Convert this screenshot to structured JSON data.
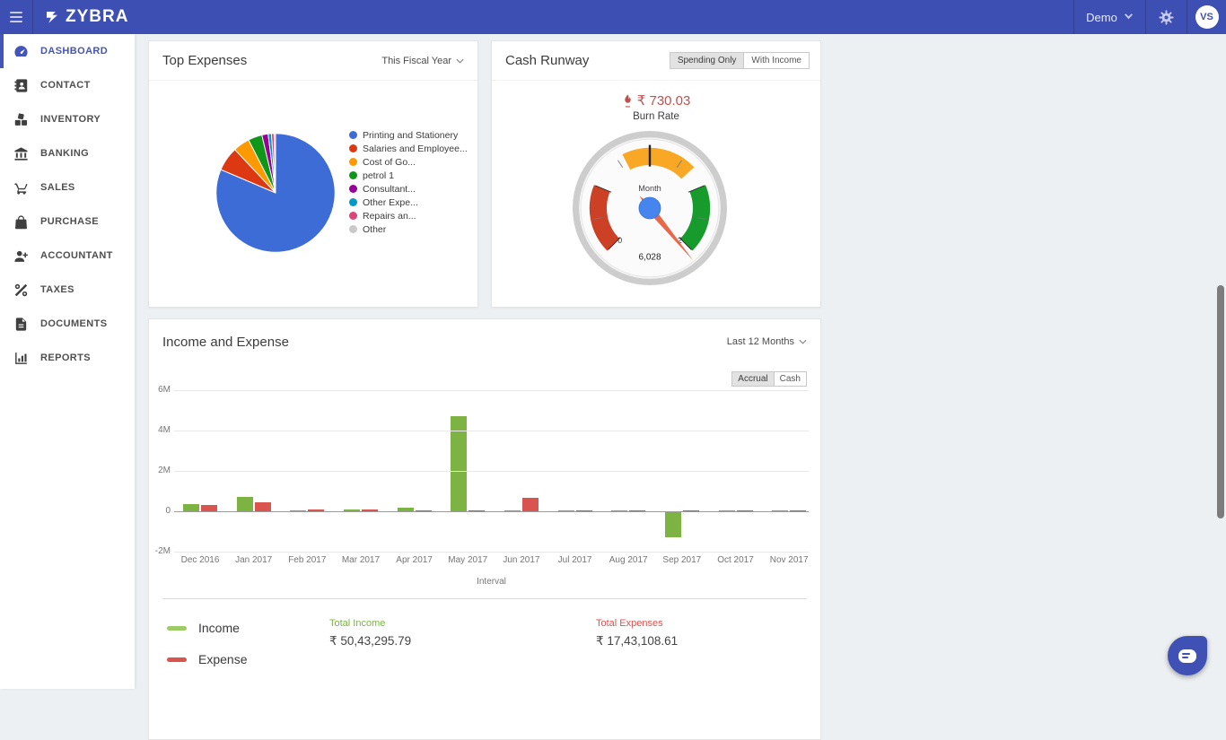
{
  "topbar": {
    "brand": "ZYBRA",
    "org_menu": "Demo",
    "avatar_initials": "VS"
  },
  "sidebar": {
    "items": [
      {
        "label": "DASHBOARD",
        "icon": "dashboard-icon",
        "active": true
      },
      {
        "label": "CONTACT",
        "icon": "contact-icon",
        "active": false
      },
      {
        "label": "INVENTORY",
        "icon": "inventory-icon",
        "active": false
      },
      {
        "label": "BANKING",
        "icon": "bank-icon",
        "active": false
      },
      {
        "label": "SALES",
        "icon": "cart-icon",
        "active": false
      },
      {
        "label": "PURCHASE",
        "icon": "bag-icon",
        "active": false
      },
      {
        "label": "ACCOUNTANT",
        "icon": "person-add-icon",
        "active": false
      },
      {
        "label": "TAXES",
        "icon": "percent-icon",
        "active": false
      },
      {
        "label": "DOCUMENTS",
        "icon": "document-icon",
        "active": false
      },
      {
        "label": "REPORTS",
        "icon": "bar-chart-icon",
        "active": false
      }
    ]
  },
  "top_expenses": {
    "title": "Top Expenses",
    "filter": "This Fiscal Year"
  },
  "cash_runway": {
    "title": "Cash Runway",
    "toggle_options": [
      "Spending Only",
      "With Income"
    ],
    "active_toggle": "Spending Only",
    "burn_rate_value": "₹ 730.03",
    "burn_rate_label": "Burn Rate"
  },
  "income_expense": {
    "title": "Income and Expense",
    "filter": "Last 12 Months",
    "toggle_options": [
      "Accrual",
      "Cash"
    ],
    "active_toggle": "Accrual",
    "legend": [
      {
        "label": "Income",
        "color": "#9CCC65"
      },
      {
        "label": "Expense",
        "color": "#D9534F"
      }
    ],
    "total_income_label": "Total Income",
    "total_income_value": "₹ 50,43,295.79",
    "total_income_color": "#7CB342",
    "total_expenses_label": "Total Expenses",
    "total_expenses_value": "₹ 17,43,108.61",
    "total_expenses_color": "#D9534F"
  },
  "chart_data": [
    {
      "name": "top_expenses_pie",
      "type": "pie",
      "title": "Top Expenses",
      "labels": [
        "Printing and Stationery",
        "Salaries and Employee...",
        "Cost of Go...",
        "petrol 1",
        "Consultant...",
        "Other Expe...",
        "Repairs an...",
        "Other"
      ],
      "values": [
        81.4,
        6.6,
        4.5,
        3.8,
        1.7,
        0.9,
        0.7,
        0.4
      ],
      "unit": "percent",
      "colors": [
        "#3D6CD7",
        "#DC3912",
        "#FF9900",
        "#109618",
        "#990099",
        "#0099C6",
        "#DD4477",
        "#C9C9C9"
      ],
      "legend_position": "right"
    },
    {
      "name": "cash_runway_gauge",
      "type": "gauge",
      "dial_label": "Month",
      "value": 6028,
      "value_display": "6,028",
      "min": 0,
      "max": 2,
      "min_label": "0",
      "max_label": "2",
      "red_zone": [
        0,
        0.5
      ],
      "yellow_zone": [
        0.8,
        1.35
      ],
      "green_zone": [
        1.5,
        2
      ],
      "colors": {
        "red": "#CC4125",
        "yellow": "#F9A825",
        "green": "#169B2C",
        "needle": "#E8684A",
        "hub": "#4684EE",
        "ring": "#CDCDCD"
      }
    },
    {
      "name": "income_expense_bar",
      "type": "bar",
      "categories": [
        "Dec 2016",
        "Jan 2017",
        "Feb 2017",
        "Mar 2017",
        "Apr 2017",
        "May 2017",
        "Jun 2017",
        "Jul 2017",
        "Aug 2017",
        "Sep 2017",
        "Oct 2017",
        "Nov 2017"
      ],
      "series": [
        {
          "name": "Income",
          "color": "#7CB342",
          "values": [
            0.35,
            0.72,
            0.02,
            0.09,
            0.17,
            4.7,
            0.06,
            0.02,
            0.06,
            -1.25,
            0.01,
            0.01
          ]
        },
        {
          "name": "Expense",
          "color": "#D9534F",
          "values": [
            0.3,
            0.45,
            0.08,
            0.08,
            0.03,
            0.04,
            0.65,
            0.02,
            0.01,
            0.01,
            0.01,
            0.01
          ]
        }
      ],
      "unit": "millions",
      "y_ticks": [
        {
          "label": "6M",
          "value": 6
        },
        {
          "label": "4M",
          "value": 4
        },
        {
          "label": "2M",
          "value": 2
        },
        {
          "label": "0",
          "value": 0
        },
        {
          "label": "-2M",
          "value": -2
        }
      ],
      "ylim": [
        -2,
        6
      ],
      "xlabel": "Interval",
      "grid": true
    }
  ]
}
